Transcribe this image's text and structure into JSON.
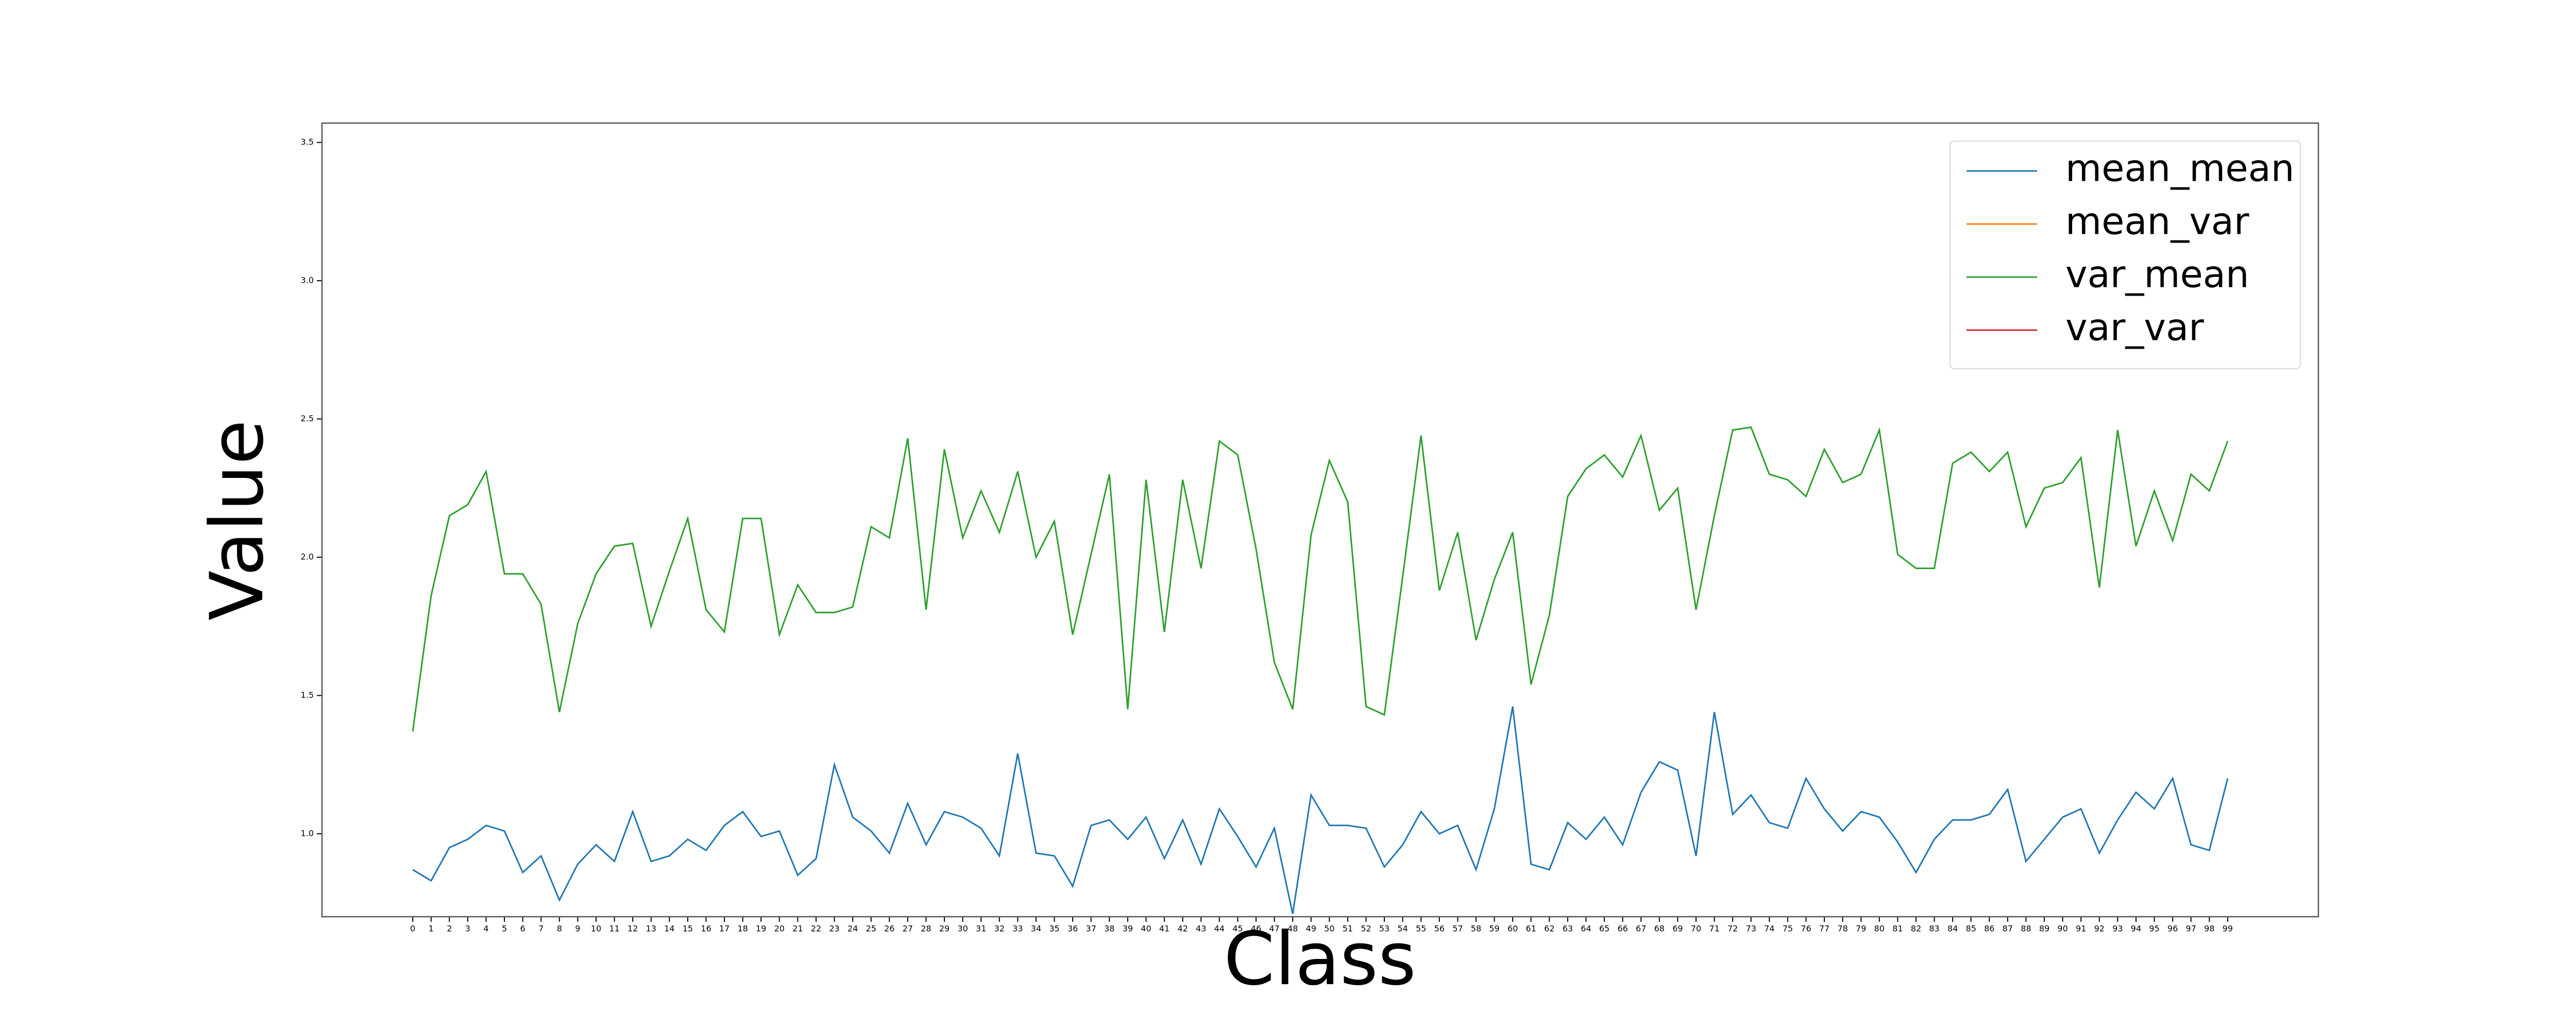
{
  "chart_data": {
    "type": "line",
    "xlabel": "Class",
    "ylabel": "Value",
    "x": [
      0,
      1,
      2,
      3,
      4,
      5,
      6,
      7,
      8,
      9,
      10,
      11,
      12,
      13,
      14,
      15,
      16,
      17,
      18,
      19,
      20,
      21,
      22,
      23,
      24,
      25,
      26,
      27,
      28,
      29,
      30,
      31,
      32,
      33,
      34,
      35,
      36,
      37,
      38,
      39,
      40,
      41,
      42,
      43,
      44,
      45,
      46,
      47,
      48,
      49,
      50,
      51,
      52,
      53,
      54,
      55,
      56,
      57,
      58,
      59,
      60,
      61,
      62,
      63,
      64,
      65,
      66,
      67,
      68,
      69,
      70,
      71,
      72,
      73,
      74,
      75,
      76,
      77,
      78,
      79,
      80,
      81,
      82,
      83,
      84,
      85,
      86,
      87,
      88,
      89,
      90,
      91,
      92,
      93,
      94,
      95,
      96,
      97,
      98,
      99
    ],
    "series": [
      {
        "name": "mean_mean",
        "color": "#1f77b4",
        "values": [
          0.87,
          0.83,
          0.95,
          0.98,
          1.03,
          1.01,
          0.86,
          0.92,
          0.76,
          0.89,
          0.96,
          0.9,
          1.08,
          0.9,
          0.92,
          0.98,
          0.94,
          1.03,
          1.08,
          0.99,
          1.01,
          0.85,
          0.91,
          1.25,
          1.06,
          1.01,
          0.93,
          1.11,
          0.96,
          1.08,
          1.06,
          1.02,
          0.92,
          1.29,
          0.93,
          0.92,
          0.81,
          1.03,
          1.05,
          0.98,
          1.06,
          0.91,
          1.05,
          0.89,
          1.09,
          0.99,
          0.88,
          1.02,
          0.71,
          1.14,
          1.03,
          1.03,
          1.02,
          0.88,
          0.96,
          1.08,
          1.0,
          1.03,
          0.87,
          1.09,
          1.46,
          0.89,
          0.87,
          1.04,
          0.98,
          1.06,
          0.96,
          1.15,
          1.26,
          1.23,
          0.92,
          1.44,
          1.07,
          1.14,
          1.04,
          1.02,
          1.2,
          1.09,
          1.01,
          1.08,
          1.06,
          0.97,
          0.86,
          0.98,
          1.05,
          1.05,
          1.07,
          1.16,
          0.9,
          0.98,
          1.06,
          1.09,
          0.93,
          1.05,
          1.15,
          1.09,
          1.2,
          0.96,
          0.94,
          1.2
        ]
      },
      {
        "name": "mean_var",
        "color": "#ff7f0e",
        "values": [
          null,
          null,
          null,
          null,
          null,
          null,
          null,
          null,
          null,
          null,
          null,
          null,
          null,
          null,
          null,
          null,
          null,
          null,
          null,
          null,
          null,
          null,
          null,
          null,
          null,
          null,
          null,
          null,
          null,
          null,
          null,
          null,
          null,
          null,
          null,
          null,
          null,
          null,
          null,
          null,
          null,
          null,
          null,
          null,
          null,
          null,
          null,
          null,
          null,
          null,
          null,
          null,
          null,
          null,
          null,
          null,
          null,
          null,
          null,
          null,
          null,
          null,
          null,
          null,
          null,
          null,
          null,
          null,
          null,
          null,
          null,
          null,
          null,
          null,
          null,
          null,
          null,
          null,
          null,
          null,
          null,
          null,
          null,
          null,
          null,
          null,
          null,
          null,
          null,
          null,
          null,
          null,
          null,
          null,
          null,
          null,
          null,
          null,
          null,
          null
        ]
      },
      {
        "name": "var_mean",
        "color": "#2ca02c",
        "values": [
          1.37,
          1.86,
          2.15,
          2.19,
          2.31,
          1.94,
          1.94,
          1.83,
          1.44,
          1.76,
          1.94,
          2.04,
          2.05,
          1.75,
          1.95,
          2.14,
          1.81,
          1.73,
          2.14,
          2.14,
          1.72,
          1.9,
          1.8,
          1.8,
          1.82,
          2.11,
          2.07,
          2.43,
          1.81,
          2.39,
          2.07,
          2.24,
          2.09,
          2.31,
          2.0,
          2.13,
          1.72,
          2.01,
          2.3,
          1.45,
          2.28,
          1.73,
          2.28,
          1.96,
          2.42,
          2.37,
          2.03,
          1.62,
          1.45,
          2.08,
          2.35,
          2.2,
          1.46,
          1.43,
          1.93,
          2.44,
          1.88,
          2.09,
          1.7,
          1.92,
          2.09,
          1.54,
          1.79,
          2.22,
          2.32,
          2.37,
          2.29,
          2.44,
          2.17,
          2.25,
          1.81,
          2.15,
          2.46,
          2.47,
          2.3,
          2.28,
          2.22,
          2.39,
          2.27,
          2.3,
          2.46,
          2.01,
          1.96,
          1.96,
          2.34,
          2.38,
          2.31,
          2.38,
          2.11,
          2.25,
          2.27,
          2.36,
          1.89,
          2.46,
          2.04,
          2.24,
          2.06,
          2.3,
          2.24,
          2.42
        ]
      },
      {
        "name": "var_var",
        "color": "#d62728",
        "values": [
          null,
          null,
          null,
          null,
          null,
          null,
          null,
          null,
          null,
          null,
          null,
          null,
          null,
          null,
          null,
          null,
          null,
          null,
          null,
          null,
          null,
          null,
          null,
          null,
          null,
          null,
          null,
          null,
          null,
          null,
          null,
          null,
          null,
          null,
          null,
          null,
          null,
          null,
          null,
          null,
          null,
          null,
          null,
          null,
          null,
          null,
          null,
          null,
          null,
          null,
          null,
          null,
          null,
          null,
          null,
          null,
          null,
          null,
          null,
          null,
          null,
          null,
          null,
          null,
          null,
          null,
          null,
          null,
          null,
          null,
          null,
          null,
          null,
          null,
          null,
          null,
          null,
          null,
          null,
          null,
          null,
          null,
          null,
          null,
          null,
          null,
          null,
          null,
          null,
          null,
          null,
          null,
          null,
          null,
          null,
          null,
          null,
          null,
          null,
          null
        ]
      }
    ],
    "xlim": [
      -4.95,
      103.95
    ],
    "xticks": [
      0,
      1,
      2,
      3,
      4,
      5,
      6,
      7,
      8,
      9,
      10,
      11,
      12,
      13,
      14,
      15,
      16,
      17,
      18,
      19,
      20,
      21,
      22,
      23,
      24,
      25,
      26,
      27,
      28,
      29,
      30,
      31,
      32,
      33,
      34,
      35,
      36,
      37,
      38,
      39,
      40,
      41,
      42,
      43,
      44,
      45,
      46,
      47,
      48,
      49,
      50,
      51,
      52,
      53,
      54,
      55,
      56,
      57,
      58,
      59,
      60,
      61,
      62,
      63,
      64,
      65,
      66,
      67,
      68,
      69,
      70,
      71,
      72,
      73,
      74,
      75,
      76,
      77,
      78,
      79,
      80,
      81,
      82,
      83,
      84,
      85,
      86,
      87,
      88,
      89,
      90,
      91,
      92,
      93,
      94,
      95,
      96,
      97,
      98,
      99
    ],
    "ylim": [
      0.7,
      3.57
    ],
    "yticks": [
      {
        "value": 1,
        "label": "1.0"
      },
      {
        "value": 1.5,
        "label": "1.5"
      },
      {
        "value": 2,
        "label": "2.0"
      },
      {
        "value": 2.5,
        "label": "2.5"
      },
      {
        "value": 3,
        "label": "3.0"
      },
      {
        "value": 3.5,
        "label": "3.5"
      }
    ],
    "grid": false,
    "legend": "upper right"
  }
}
